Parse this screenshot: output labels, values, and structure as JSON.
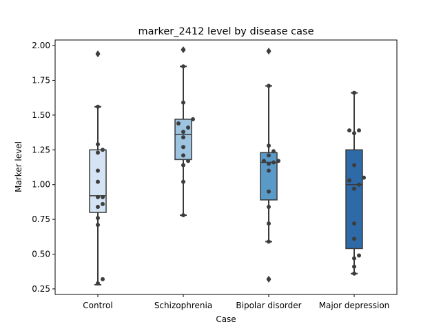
{
  "chart_data": {
    "type": "box",
    "title": "marker_2412 level by disease case",
    "xlabel": "Case",
    "ylabel": "Marker level",
    "ylim": [
      0.21,
      2.04
    ],
    "yticks": [
      "0.25",
      "0.50",
      "0.75",
      "1.00",
      "1.25",
      "1.50",
      "1.75",
      "2.00"
    ],
    "categories": [
      "Control",
      "Schizophrenia",
      "Bipolar disorder",
      "Major depression"
    ],
    "colors": [
      "#d4e4f4",
      "#9dc4e0",
      "#5a9ac8",
      "#2e6aa8"
    ],
    "grid": false,
    "legend": "none",
    "series": [
      {
        "box": {
          "whisker_low": 0.28,
          "q1": 0.8,
          "median": 0.92,
          "q3": 1.25,
          "whisker_high": 1.56
        },
        "outliers": [
          1.94
        ],
        "points": [
          0.32,
          0.29,
          0.71,
          0.76,
          0.84,
          0.86,
          0.91,
          0.91,
          1.02,
          1.1,
          1.23,
          1.25,
          1.29,
          1.56,
          1.94
        ]
      },
      {
        "box": {
          "whisker_low": 0.78,
          "q1": 1.18,
          "median": 1.36,
          "q3": 1.47,
          "whisker_high": 1.85
        },
        "outliers": [
          1.97
        ],
        "points": [
          0.78,
          1.02,
          1.14,
          1.17,
          1.21,
          1.27,
          1.34,
          1.38,
          1.41,
          1.44,
          1.47,
          1.59,
          1.85,
          1.97
        ]
      },
      {
        "box": {
          "whisker_low": 0.59,
          "q1": 0.89,
          "median": 1.16,
          "q3": 1.23,
          "whisker_high": 1.71
        },
        "outliers": [
          1.96,
          0.32
        ],
        "points": [
          0.32,
          0.59,
          0.72,
          0.84,
          0.95,
          1.1,
          1.15,
          1.16,
          1.17,
          1.17,
          1.21,
          1.24,
          1.28,
          1.71,
          1.96
        ]
      },
      {
        "box": {
          "whisker_low": 0.36,
          "q1": 0.54,
          "median": 1.0,
          "q3": 1.25,
          "whisker_high": 1.66
        },
        "outliers": [],
        "points": [
          0.36,
          0.41,
          0.47,
          0.49,
          0.61,
          0.72,
          0.97,
          1.0,
          1.03,
          1.05,
          1.14,
          1.37,
          1.39,
          1.39,
          1.66
        ]
      }
    ]
  }
}
